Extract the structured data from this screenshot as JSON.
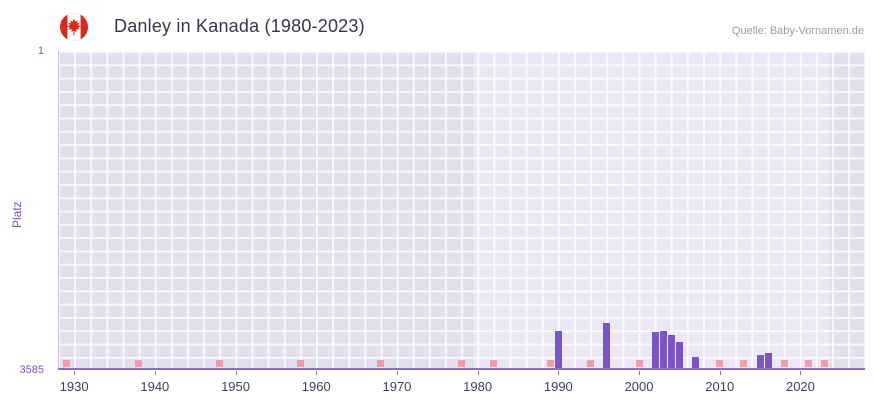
{
  "header": {
    "title": "Danley in Kanada (1980-2023)",
    "source": "Quelle: Baby-Vornamen.de"
  },
  "chart_data": {
    "type": "bar",
    "title": "Danley in Kanada (1980-2023)",
    "xlabel": "",
    "ylabel": "Platz",
    "y_axis_inverted": true,
    "x_range": [
      1928,
      2028
    ],
    "y_range": [
      1,
      3585
    ],
    "x_ticks": [
      1930,
      1940,
      1950,
      1960,
      1970,
      1980,
      1990,
      2000,
      2010,
      2020
    ],
    "y_ticks": [
      1,
      3585
    ],
    "highlight_range": [
      1979.5,
      2023.5
    ],
    "grid": true,
    "series": [
      {
        "name": "Platz",
        "points": [
          {
            "year": 1990,
            "rank": 3150
          },
          {
            "year": 1996,
            "rank": 3060
          },
          {
            "year": 2002,
            "rank": 3160
          },
          {
            "year": 2003,
            "rank": 3150
          },
          {
            "year": 2004,
            "rank": 3190
          },
          {
            "year": 2005,
            "rank": 3270
          },
          {
            "year": 2007,
            "rank": 3440
          },
          {
            "year": 2015,
            "rank": 3420
          },
          {
            "year": 2016,
            "rank": 3390
          }
        ]
      }
    ],
    "unplaced_years": [
      1929,
      1938,
      1948,
      1958,
      1968,
      1978,
      1982,
      1989,
      1994,
      2000,
      2010,
      2013,
      2018,
      2021,
      2023
    ],
    "colors": {
      "bar": "#7d55c2",
      "unplaced_marker": "#f49ba5",
      "plot_bg": "#e3e0ee",
      "highlight_bg": "#ebe8f6",
      "axis": "#8e6fc8",
      "y_label": "#7d55b8",
      "x_label": "#3f3f63",
      "flag_red": "#d52b1e"
    }
  }
}
